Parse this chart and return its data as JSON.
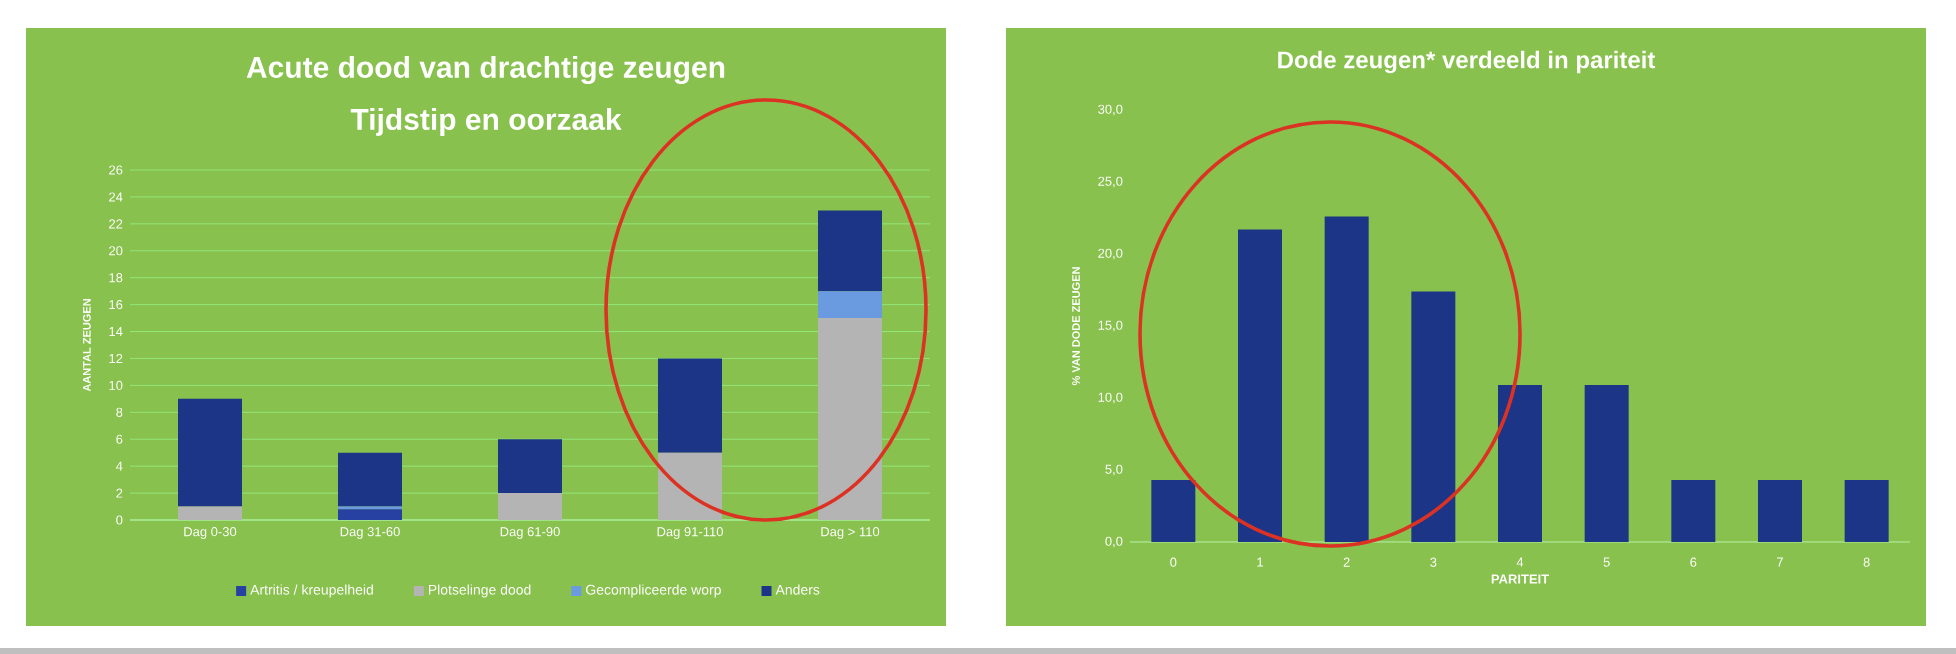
{
  "chart_data": [
    {
      "type": "bar",
      "title": "Acute dood van drachtige zeugen",
      "subtitle": "Tijdstip en oorzaak",
      "ylabel": "AANTAL ZEUGEN",
      "categories": [
        "Dag 0-30",
        "Dag 31-60",
        "Dag 61-90",
        "Dag 91-110",
        "Dag > 110"
      ],
      "stacked": true,
      "series": [
        {
          "name": "Artritis / kreupelheid",
          "color": "#2741a3",
          "values": [
            0,
            0.8,
            0,
            0,
            0
          ]
        },
        {
          "name": "Plotselinge dood",
          "color": "#b4b4b4",
          "values": [
            1,
            0,
            2,
            5,
            15
          ]
        },
        {
          "name": "Gecompliceerde worp",
          "color": "#6a9be0",
          "values": [
            0,
            0.2,
            0,
            0,
            2
          ]
        },
        {
          "name": "Anders",
          "color": "#1c3587",
          "values": [
            8,
            4,
            4,
            7,
            6
          ]
        }
      ],
      "ylim": [
        0,
        26
      ],
      "yticks": [
        0,
        2,
        4,
        6,
        8,
        10,
        12,
        14,
        16,
        18,
        20,
        22,
        24,
        26
      ],
      "grid": "y",
      "legend": "bottom"
    },
    {
      "type": "bar",
      "title": "Dode zeugen* verdeeld in pariteit",
      "xlabel": "PARITEIT",
      "ylabel": "% VAN DODE ZEUGEN",
      "categories": [
        "0",
        "1",
        "2",
        "3",
        "4",
        "5",
        "6",
        "7",
        "8"
      ],
      "values": [
        4.3,
        21.7,
        22.6,
        17.4,
        10.9,
        10.9,
        4.3,
        4.3,
        4.3
      ],
      "color": "#1c3587",
      "ylim": [
        0,
        30
      ],
      "yticks": [
        {
          "value": 0,
          "label": "0,0"
        },
        {
          "value": 5,
          "label": "5,0"
        },
        {
          "value": 10,
          "label": "10,0"
        },
        {
          "value": 15,
          "label": "15,0"
        },
        {
          "value": 20,
          "label": "20,0"
        },
        {
          "value": 25,
          "label": "25,0"
        },
        {
          "value": 30,
          "label": "30,0"
        }
      ]
    }
  ]
}
